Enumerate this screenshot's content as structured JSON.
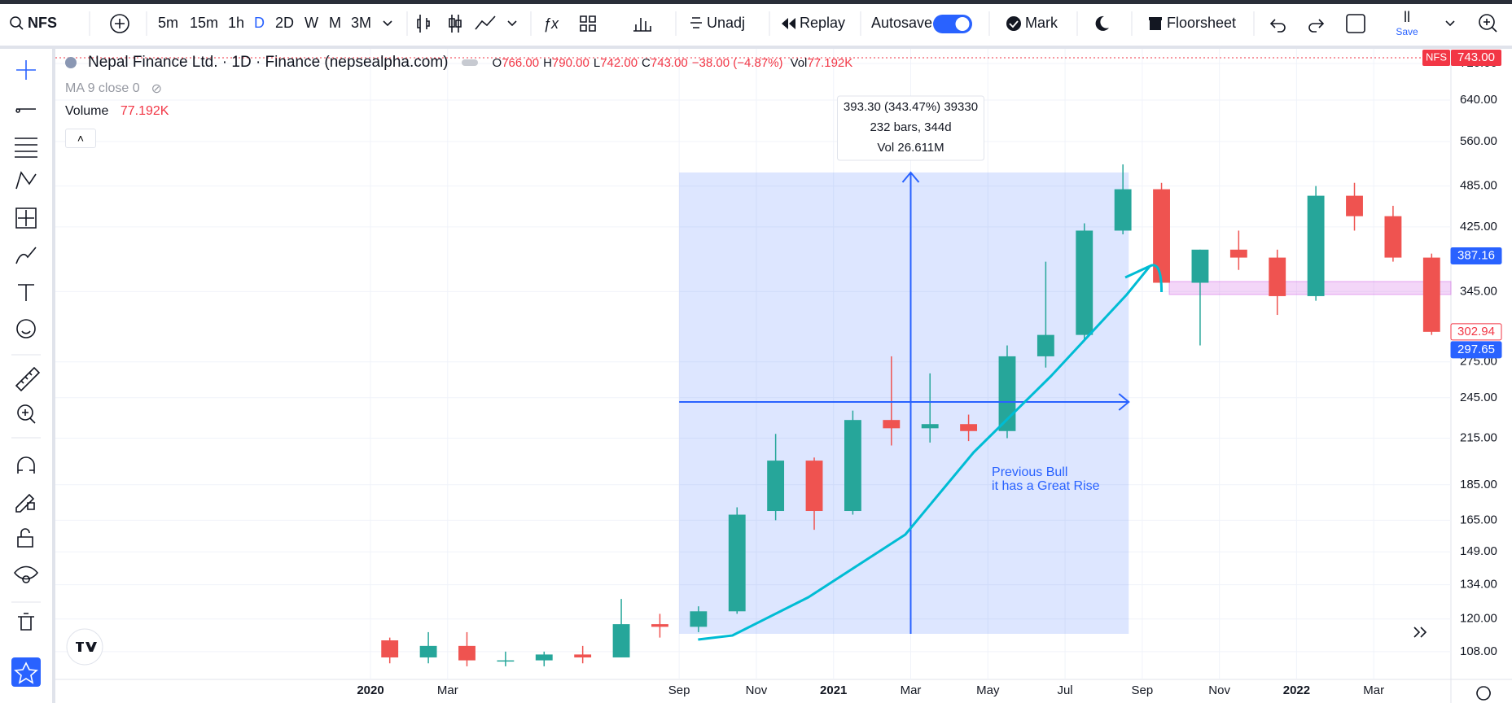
{
  "toolbar": {
    "symbol": "NFS",
    "intervals": [
      "5m",
      "15m",
      "1h",
      "D",
      "2D",
      "W",
      "M",
      "3M"
    ],
    "adjust": "Unadj",
    "replay": "Replay",
    "autosave": "Autosave",
    "mark": "Mark",
    "floorsheet": "Floorsheet",
    "layout_name": "ll",
    "save": "Save"
  },
  "legend": {
    "title": "Nepal Finance Ltd. · 1D · Finance (nepsealpha.com)",
    "open_label": "O",
    "open": "766.00",
    "high_label": "H",
    "high": "790.00",
    "low_label": "L",
    "low": "742.00",
    "close_label": "C",
    "close": "743.00",
    "change": "−38.00 (−4.87%)",
    "volume_label": "Vol",
    "volume": "77.192K"
  },
  "indicators": {
    "ma": "MA 9 close 0",
    "volume_label": "Volume",
    "volume_value": "77.192K"
  },
  "measure": {
    "price_change": "393.30 (343.47%) 39330",
    "bars": "232 bars, 344d",
    "volume": "Vol 26.611M"
  },
  "note": {
    "line1": "Previous Bull",
    "line2": "it has a Great Rise"
  },
  "price_tags": {
    "symbol": "NFS",
    "last": {
      "value": 743,
      "label": "743.00"
    },
    "levels": [
      {
        "value": 387.16,
        "color": "#2962ff",
        "outline": false
      },
      {
        "value": 302.94,
        "color": "#f23645",
        "outline": true
      },
      {
        "value": 297.65,
        "color": "#2962ff",
        "outline": false
      }
    ]
  },
  "chart_data": {
    "type": "candlestick",
    "log_scale": true,
    "grid": true,
    "up_color": "#26a69a",
    "down_color": "#ef5350",
    "x": [
      "2020-01",
      "2020-02",
      "2020-03",
      "2020-04",
      "2020-05",
      "2020-06",
      "2020-07",
      "2020-08",
      "2020-09",
      "2020-10",
      "2020-11",
      "2020-12",
      "2021-01",
      "2021-02",
      "2021-03",
      "2021-04",
      "2021-05",
      "2021-06",
      "2021-07",
      "2021-08",
      "2021-09",
      "2021-10",
      "2021-11",
      "2021-12",
      "2022-01",
      "2022-02",
      "2022-03",
      "2022-04"
    ],
    "open": [
      112,
      106,
      110,
      105,
      105,
      107,
      106,
      118,
      117,
      123,
      170,
      200,
      170,
      228,
      222,
      225,
      220,
      280,
      300,
      420,
      480,
      355,
      395,
      385,
      340,
      470,
      440,
      385
    ],
    "high": [
      113,
      115,
      115,
      108,
      108,
      110,
      128,
      122,
      125,
      172,
      218,
      202,
      235,
      280,
      265,
      232,
      290,
      380,
      430,
      520,
      490,
      395,
      420,
      395,
      485,
      490,
      455,
      390
    ],
    "low": [
      104,
      104,
      103,
      103,
      103,
      104,
      106,
      113,
      115,
      122,
      165,
      160,
      168,
      210,
      212,
      213,
      215,
      270,
      295,
      415,
      350,
      290,
      370,
      320,
      335,
      420,
      380,
      300
    ],
    "close": [
      106,
      110,
      105,
      105,
      107,
      106,
      118,
      117,
      123,
      168,
      200,
      170,
      228,
      222,
      225,
      220,
      280,
      300,
      420,
      480,
      355,
      395,
      385,
      340,
      470,
      440,
      385,
      303
    ],
    "ylim": [
      99,
      757
    ],
    "yticks": [
      {
        "value": 720,
        "label": "720.00"
      },
      {
        "value": 640,
        "label": "640.00"
      },
      {
        "value": 560,
        "label": "560.00"
      },
      {
        "value": 485,
        "label": "485.00"
      },
      {
        "value": 425,
        "label": "425.00"
      },
      {
        "value": 345,
        "label": "345.00"
      },
      {
        "value": 275,
        "label": "275.00"
      },
      {
        "value": 245,
        "label": "245.00"
      },
      {
        "value": 215,
        "label": "215.00"
      },
      {
        "value": 185,
        "label": "185.00"
      },
      {
        "value": 165,
        "label": "165.00"
      },
      {
        "value": 149,
        "label": "149.00"
      },
      {
        "value": 134,
        "label": "134.00"
      },
      {
        "value": 120,
        "label": "120.00"
      },
      {
        "value": 108,
        "label": "108.00"
      }
    ],
    "xticks": [
      {
        "value": "2020-01",
        "label": "2020"
      },
      {
        "value": "2020-03",
        "label": "Mar"
      },
      {
        "value": "2020-09",
        "label": "Sep"
      },
      {
        "value": "2020-11",
        "label": "Nov"
      },
      {
        "value": "2021-01",
        "label": "2021"
      },
      {
        "value": "2021-03",
        "label": "Mar"
      },
      {
        "value": "2021-05",
        "label": "May"
      },
      {
        "value": "2021-07",
        "label": "Jul"
      },
      {
        "value": "2021-09",
        "label": "Sep"
      },
      {
        "value": "2021-11",
        "label": "Nov"
      },
      {
        "value": "2022-01",
        "label": "2022"
      },
      {
        "value": "2022-03",
        "label": "Mar"
      }
    ]
  }
}
